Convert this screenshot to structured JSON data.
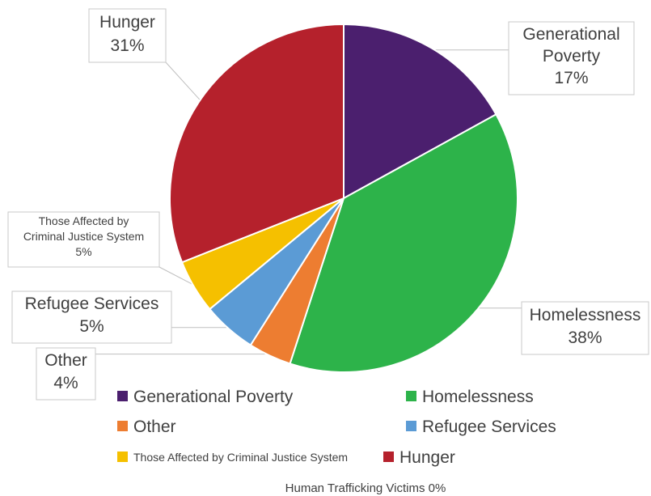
{
  "chart_data": {
    "type": "pie",
    "title": "",
    "slices": [
      {
        "label": "Generational Poverty",
        "value": 17,
        "display": "17%",
        "color": "#4b1f6e"
      },
      {
        "label": "Homelessness",
        "value": 38,
        "display": "38%",
        "color": "#2db34a"
      },
      {
        "label": "Other",
        "value": 4,
        "display": "4%",
        "color": "#ed7d31"
      },
      {
        "label": "Refugee Services",
        "value": 5,
        "display": "5%",
        "color": "#5b9bd5"
      },
      {
        "label": "Those Affected by Criminal Justice System",
        "value": 5,
        "display": "5%",
        "color": "#f5c000"
      },
      {
        "label": "Hunger",
        "value": 31,
        "display": "31%",
        "color": "#b5212c"
      }
    ],
    "footnote": "Human Trafficking Victims 0%",
    "legend_position": "bottom"
  },
  "callout_lines": {
    "Generational Poverty": [
      "Generational",
      "Poverty",
      "17%"
    ],
    "Homelessness": [
      "Homelessness",
      "38%"
    ],
    "Other": [
      "Other",
      "4%"
    ],
    "Refugee Services": [
      "Refugee Services",
      "5%"
    ],
    "Those Affected by Criminal Justice System": [
      "Those Affected by",
      "Criminal Justice System",
      "5%"
    ],
    "Hunger": [
      "Hunger",
      "31%"
    ]
  }
}
